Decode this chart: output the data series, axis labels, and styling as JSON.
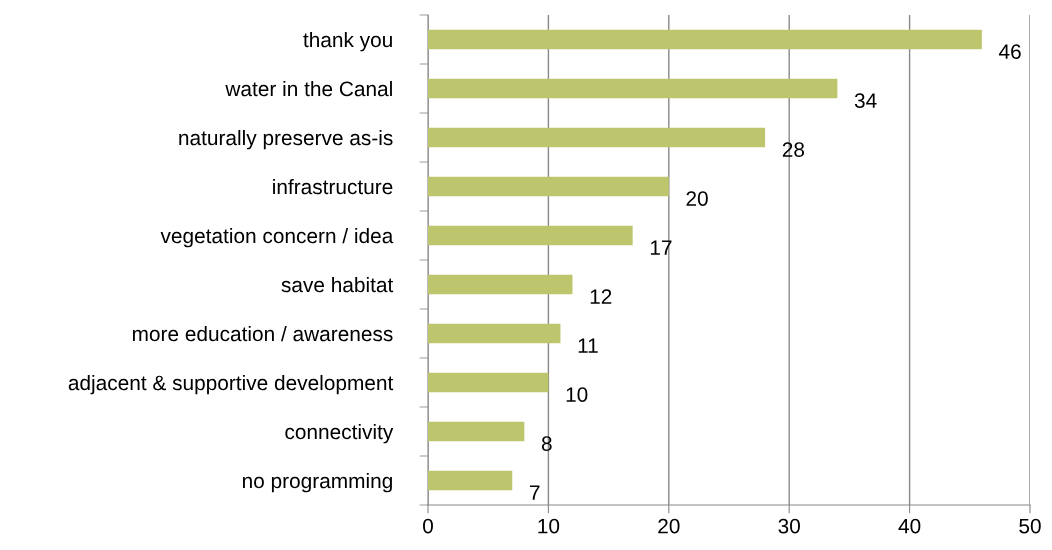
{
  "chart_data": {
    "type": "bar",
    "orientation": "horizontal",
    "categories": [
      "thank you",
      "water in the Canal",
      "naturally preserve as-is",
      "infrastructure",
      "vegetation concern / idea",
      "save habitat",
      "more education / awareness",
      "adjacent & supportive development",
      "connectivity",
      "no programming"
    ],
    "values": [
      46,
      34,
      28,
      20,
      17,
      12,
      11,
      10,
      8,
      7
    ],
    "color": "#bec66d",
    "xlim": [
      0,
      50
    ],
    "xticks": [
      0,
      10,
      20,
      30,
      40,
      50
    ],
    "grid": "x",
    "data_labels": true
  }
}
